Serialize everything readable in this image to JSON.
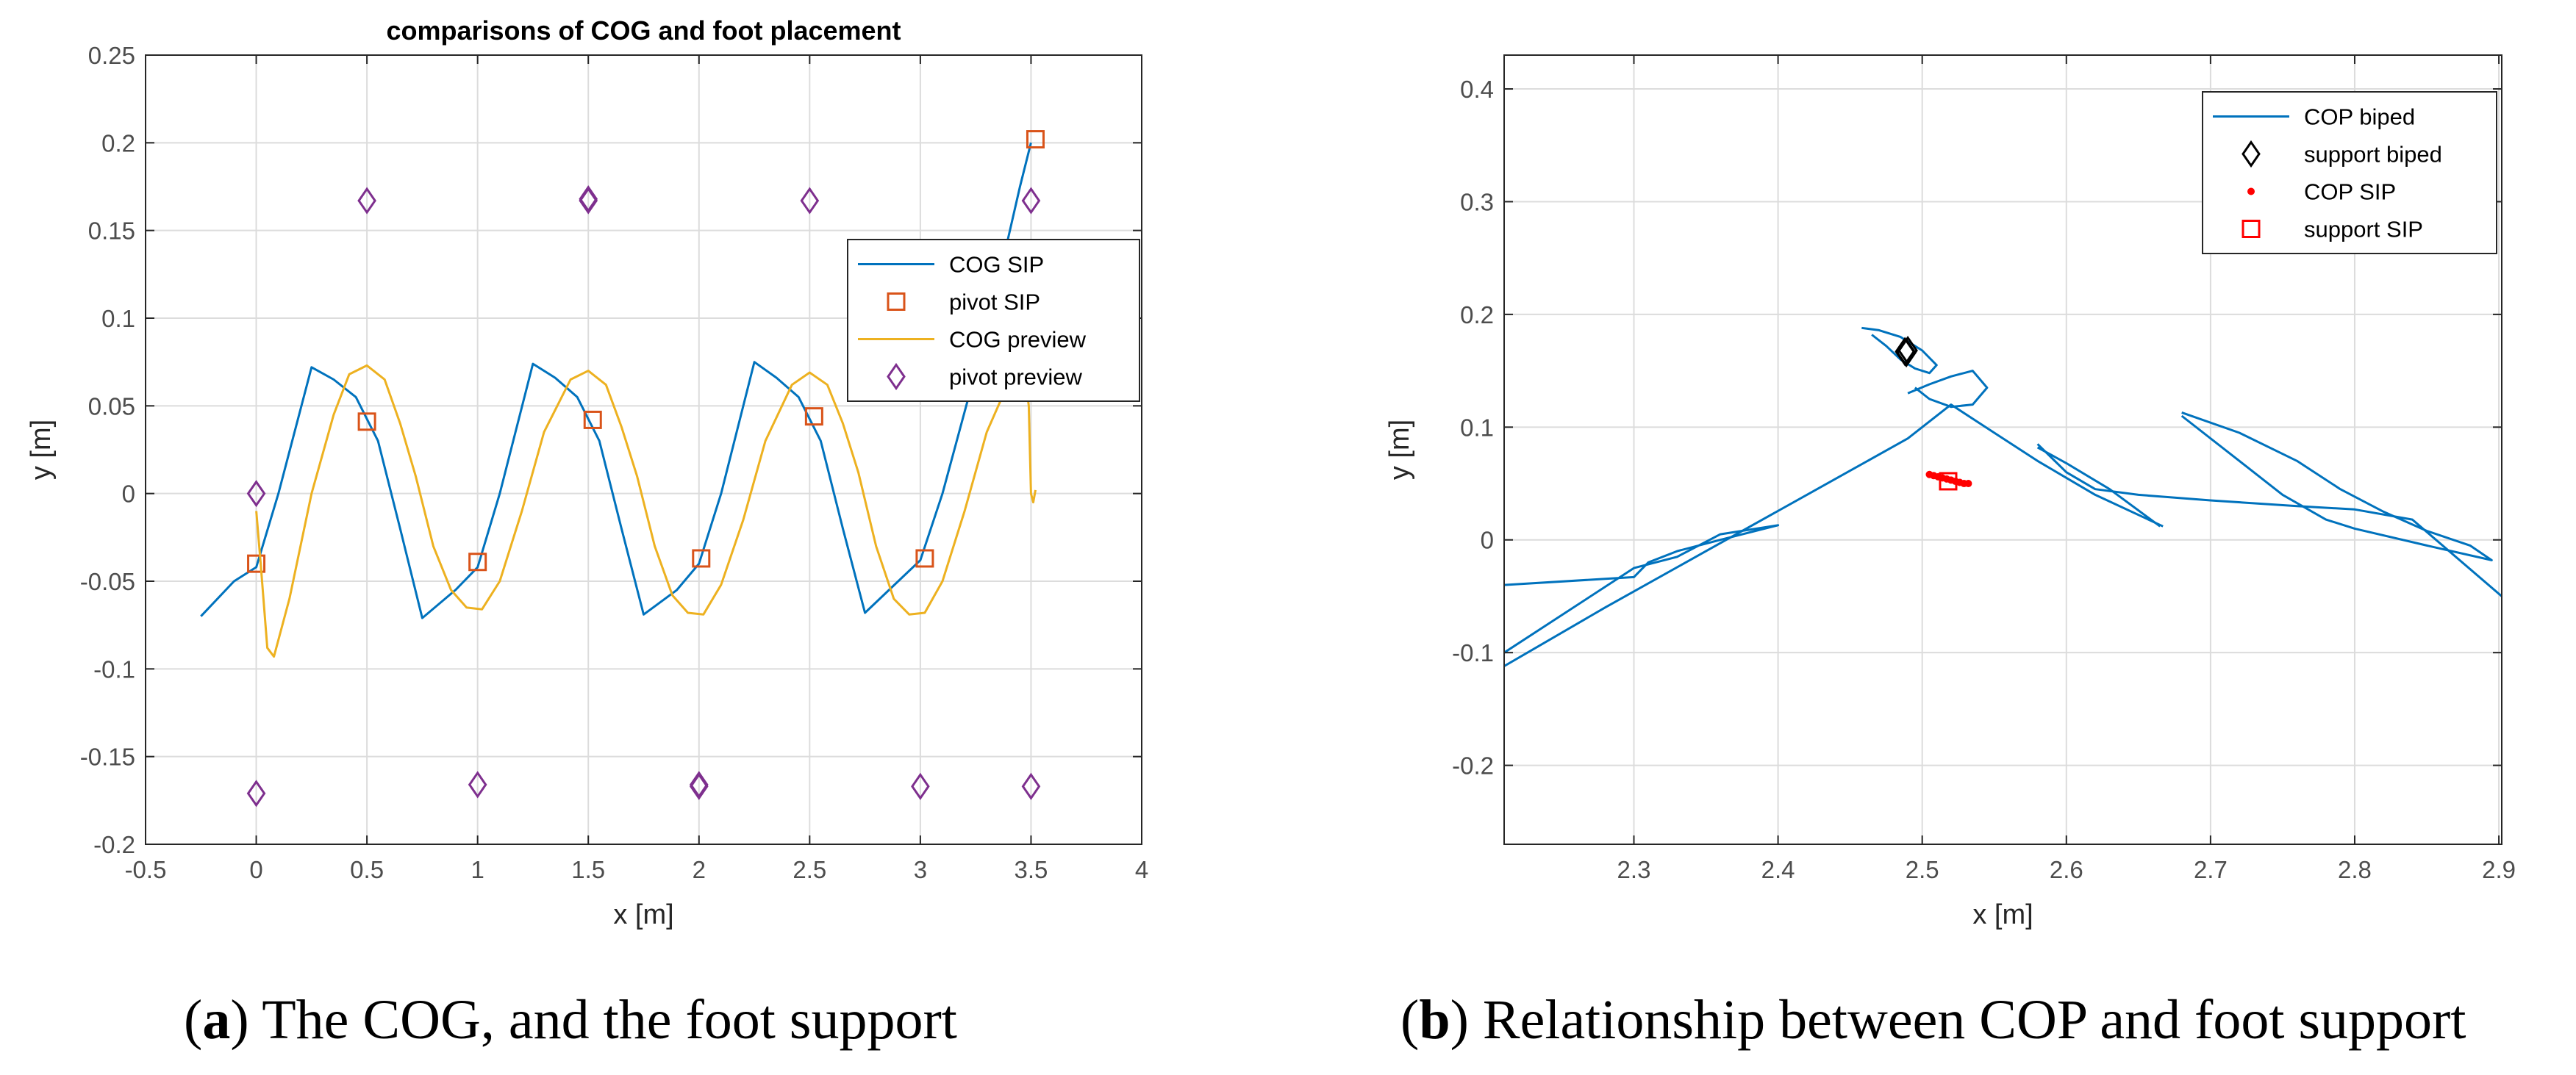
{
  "chart_data": [
    {
      "id": "a",
      "type": "line",
      "title": "comparisons of COG and foot placement",
      "xlabel": "x [m]",
      "ylabel": "y [m]",
      "xlim": [
        -0.5,
        4
      ],
      "ylim": [
        -0.2,
        0.25
      ],
      "xticks": [
        -0.5,
        0,
        0.5,
        1,
        1.5,
        2,
        2.5,
        3,
        3.5,
        4
      ],
      "xtick_labels": [
        "-0.5",
        "0",
        "0.5",
        "1",
        "1.5",
        "2",
        "2.5",
        "3",
        "3.5",
        "4"
      ],
      "yticks": [
        -0.2,
        -0.15,
        -0.1,
        -0.05,
        0,
        0.05,
        0.1,
        0.15,
        0.2,
        0.25
      ],
      "ytick_labels": [
        "-0.2",
        "-0.15",
        "-0.1",
        "-0.05",
        "0",
        "0.05",
        "0.1",
        "0.15",
        "0.2",
        "0.25"
      ],
      "grid": true,
      "legend_position": "right",
      "series": [
        {
          "name": "COG SIP",
          "style": "line",
          "color": "#0072BD",
          "x": [
            -0.25,
            -0.1,
            0.0,
            0.1,
            0.25,
            0.35,
            0.45,
            0.55,
            0.65,
            0.75,
            0.9,
            1.0,
            1.1,
            1.25,
            1.35,
            1.45,
            1.55,
            1.65,
            1.75,
            1.9,
            2.0,
            2.1,
            2.25,
            2.35,
            2.45,
            2.55,
            2.65,
            2.75,
            2.9,
            3.0,
            3.1,
            3.25,
            3.35,
            3.45,
            3.5
          ],
          "y": [
            -0.07,
            -0.05,
            -0.042,
            0.0,
            0.072,
            0.065,
            0.055,
            0.03,
            -0.02,
            -0.071,
            -0.055,
            -0.042,
            0.0,
            0.074,
            0.066,
            0.055,
            0.03,
            -0.02,
            -0.069,
            -0.055,
            -0.04,
            0.0,
            0.075,
            0.066,
            0.055,
            0.03,
            -0.02,
            -0.068,
            -0.05,
            -0.038,
            0.0,
            0.07,
            0.12,
            0.175,
            0.2
          ]
        },
        {
          "name": "pivot SIP",
          "style": "square",
          "color": "#D95319",
          "x": [
            0.0,
            0.5,
            1.0,
            1.52,
            2.01,
            2.52,
            3.02,
            3.52
          ],
          "y": [
            -0.04,
            0.041,
            -0.039,
            0.042,
            -0.037,
            0.044,
            -0.037,
            0.202
          ]
        },
        {
          "name": "COG preview",
          "style": "line",
          "color": "#EDB120",
          "x": [
            0.0,
            0.02,
            0.05,
            0.08,
            0.15,
            0.25,
            0.35,
            0.42,
            0.5,
            0.58,
            0.65,
            0.72,
            0.8,
            0.88,
            0.95,
            1.02,
            1.1,
            1.2,
            1.3,
            1.42,
            1.5,
            1.58,
            1.65,
            1.72,
            1.8,
            1.88,
            1.95,
            2.02,
            2.1,
            2.2,
            2.3,
            2.42,
            2.5,
            2.58,
            2.65,
            2.72,
            2.8,
            2.88,
            2.95,
            3.02,
            3.1,
            3.2,
            3.3,
            3.38,
            3.44,
            3.47,
            3.49,
            3.5,
            3.51,
            3.52
          ],
          "y": [
            -0.01,
            -0.04,
            -0.088,
            -0.093,
            -0.06,
            0.0,
            0.045,
            0.068,
            0.073,
            0.065,
            0.04,
            0.01,
            -0.03,
            -0.055,
            -0.065,
            -0.066,
            -0.05,
            -0.01,
            0.035,
            0.065,
            0.07,
            0.062,
            0.038,
            0.01,
            -0.03,
            -0.058,
            -0.068,
            -0.069,
            -0.052,
            -0.015,
            0.03,
            0.062,
            0.069,
            0.062,
            0.04,
            0.012,
            -0.03,
            -0.06,
            -0.069,
            -0.068,
            -0.05,
            -0.01,
            0.035,
            0.058,
            0.068,
            0.07,
            0.05,
            0.0,
            -0.005,
            0.002
          ]
        },
        {
          "name": "pivot preview",
          "style": "diamond",
          "color": "#7E2F8E",
          "x": [
            0.0,
            0.0,
            0.5,
            1.0,
            1.5,
            1.5,
            2.0,
            2.0,
            2.5,
            3.0,
            3.5,
            3.5
          ],
          "y": [
            0.0,
            -0.171,
            0.167,
            -0.166,
            0.167,
            0.168,
            -0.166,
            -0.167,
            0.167,
            -0.167,
            0.167,
            -0.167
          ]
        }
      ]
    },
    {
      "id": "b",
      "type": "line",
      "title": "",
      "xlabel": "x [m]",
      "ylabel": "y [m]",
      "xlim": [
        2.21,
        2.902
      ],
      "ylim": [
        -0.27,
        0.43
      ],
      "xticks": [
        2.3,
        2.4,
        2.5,
        2.6,
        2.7,
        2.8,
        2.9
      ],
      "xtick_labels": [
        "2.3",
        "2.4",
        "2.5",
        "2.6",
        "2.7",
        "2.8",
        "2.9"
      ],
      "yticks": [
        -0.2,
        -0.1,
        0,
        0.1,
        0.2,
        0.3,
        0.4
      ],
      "ytick_labels": [
        "-0.2",
        "-0.1",
        "0",
        "0.1",
        "0.2",
        "0.3",
        "0.4"
      ],
      "grid": true,
      "legend_position": "top-right",
      "series": [
        {
          "name": "COP biped",
          "style": "line",
          "color": "#0072BD",
          "segments": [
            {
              "x": [
                2.21,
                2.3,
                2.31,
                2.33,
                2.36,
                2.4,
                2.36,
                2.33,
                2.3,
                2.21
              ],
              "y": [
                -0.04,
                -0.033,
                -0.02,
                -0.01,
                0.0,
                0.013,
                0.005,
                -0.015,
                -0.025,
                -0.1
              ]
            },
            {
              "x": [
                2.21,
                2.28,
                2.35,
                2.42,
                2.49,
                2.52,
                2.55,
                2.58,
                2.62,
                2.667
              ],
              "y": [
                -0.112,
                -0.06,
                -0.01,
                0.04,
                0.09,
                0.12,
                0.095,
                0.07,
                0.04,
                0.012
              ]
            },
            {
              "x": [
                2.49,
                2.505,
                2.52,
                2.535,
                2.545,
                2.535,
                2.52,
                2.505,
                2.495
              ],
              "y": [
                0.13,
                0.138,
                0.145,
                0.15,
                0.135,
                0.12,
                0.118,
                0.125,
                0.135
              ]
            },
            {
              "x": [
                2.458,
                2.47,
                2.485,
                2.5,
                2.51,
                2.505,
                2.495,
                2.485,
                2.475,
                2.465
              ],
              "y": [
                0.188,
                0.186,
                0.18,
                0.168,
                0.155,
                0.148,
                0.152,
                0.16,
                0.172,
                0.182
              ]
            },
            {
              "x": [
                2.58,
                2.6,
                2.62,
                2.65,
                2.7,
                2.76,
                2.8,
                2.84,
                2.902
              ],
              "y": [
                0.085,
                0.06,
                0.045,
                0.04,
                0.035,
                0.03,
                0.027,
                0.018,
                -0.05
              ]
            },
            {
              "x": [
                2.58,
                2.6,
                2.63,
                2.665
              ],
              "y": [
                0.082,
                0.068,
                0.045,
                0.012
              ]
            },
            {
              "x": [
                2.68,
                2.72,
                2.76,
                2.79,
                2.82,
                2.85,
                2.88,
                2.895,
                2.85,
                2.8,
                2.78,
                2.75,
                2.72,
                2.68
              ],
              "y": [
                0.113,
                0.095,
                0.07,
                0.045,
                0.025,
                0.008,
                -0.005,
                -0.018,
                -0.005,
                0.01,
                0.018,
                0.04,
                0.07,
                0.11
              ]
            }
          ]
        },
        {
          "name": "support biped",
          "style": "diamond",
          "color": "#000000",
          "x": [
            2.488,
            2.49,
            2.489
          ],
          "y": [
            0.167,
            0.168,
            0.166
          ]
        },
        {
          "name": "COP SIP",
          "style": "dot",
          "color": "#FF0000",
          "x": [
            2.505,
            2.508,
            2.511,
            2.514,
            2.517,
            2.52,
            2.523,
            2.526,
            2.529,
            2.532
          ],
          "y": [
            0.058,
            0.057,
            0.056,
            0.055,
            0.054,
            0.053,
            0.052,
            0.051,
            0.05,
            0.05
          ]
        },
        {
          "name": "support SIP",
          "style": "square",
          "color": "#FF0000",
          "x": [
            2.518
          ],
          "y": [
            0.052
          ]
        }
      ]
    }
  ],
  "captions": {
    "a": {
      "label": "a",
      "text": " The COG, and the foot support"
    },
    "b": {
      "label": "b",
      "text": " Relationship between COP and foot support"
    }
  }
}
